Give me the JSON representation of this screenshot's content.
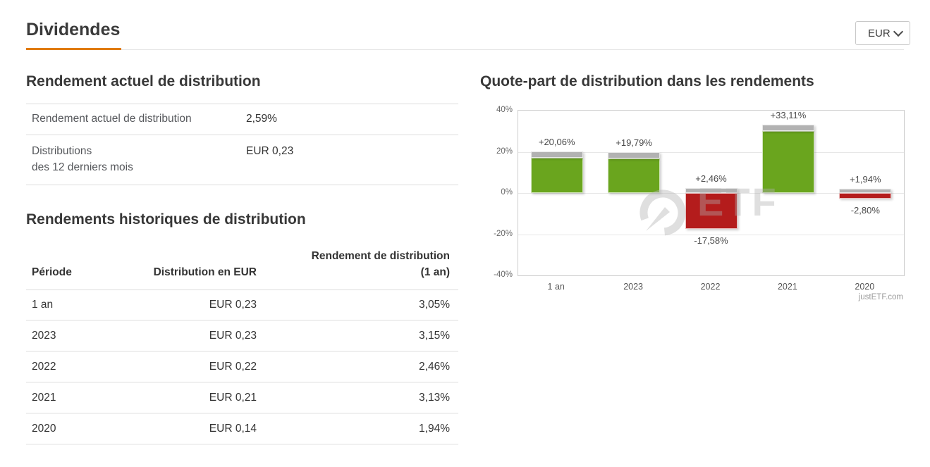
{
  "page": {
    "title": "Dividendes"
  },
  "currency_select": {
    "value": "EUR"
  },
  "current_yield": {
    "heading": "Rendement actuel de distribution",
    "rows": [
      {
        "label": "Rendement actuel de distribution",
        "value": "2,59%"
      },
      {
        "label_line1": "Distributions",
        "label_line2": "des 12 derniers mois",
        "value": "EUR 0,23"
      }
    ]
  },
  "history": {
    "heading": "Rendements historiques de distribution",
    "columns": {
      "period": "Période",
      "distribution": "Distribution en EUR",
      "yield_line1": "Rendement de distribution",
      "yield_line2": "(1 an)"
    },
    "rows": [
      {
        "period": "1 an",
        "distribution": "EUR 0,23",
        "yield": "3,05%"
      },
      {
        "period": "2023",
        "distribution": "EUR 0,23",
        "yield": "3,15%"
      },
      {
        "period": "2022",
        "distribution": "EUR 0,22",
        "yield": "2,46%"
      },
      {
        "period": "2021",
        "distribution": "EUR 0,21",
        "yield": "3,13%"
      },
      {
        "period": "2020",
        "distribution": "EUR 0,14",
        "yield": "1,94%"
      }
    ]
  },
  "chart": {
    "heading": "Quote-part de distribution dans les rendements",
    "watermark_text": "ETF",
    "credit": "justETF.com"
  },
  "chart_data": {
    "type": "bar",
    "title": "Quote-part de distribution dans les rendements",
    "categories": [
      "1 an",
      "2023",
      "2022",
      "2021",
      "2020"
    ],
    "series": [
      {
        "name": "rendement-cours",
        "values": [
          17.01,
          16.64,
          -17.58,
          29.98,
          -2.8
        ],
        "color_positive": "#6aa51e",
        "color_negative": "#b41c1c"
      },
      {
        "name": "rendement-distribution",
        "values": [
          3.05,
          3.15,
          2.46,
          3.13,
          1.94
        ],
        "color": "#b2b2b2"
      }
    ],
    "total_labels": [
      "+20,06%",
      "+19,79%",
      "+2,46%",
      "+33,11%",
      "+1,94%"
    ],
    "negative_labels": [
      "",
      "",
      "-17,58%",
      "",
      "-2,80%"
    ],
    "ylim": [
      -40,
      40
    ],
    "ytick_labels": [
      "40%",
      "20%",
      "0%",
      "-20%",
      "-40%"
    ],
    "grid": true,
    "legend": "none"
  }
}
